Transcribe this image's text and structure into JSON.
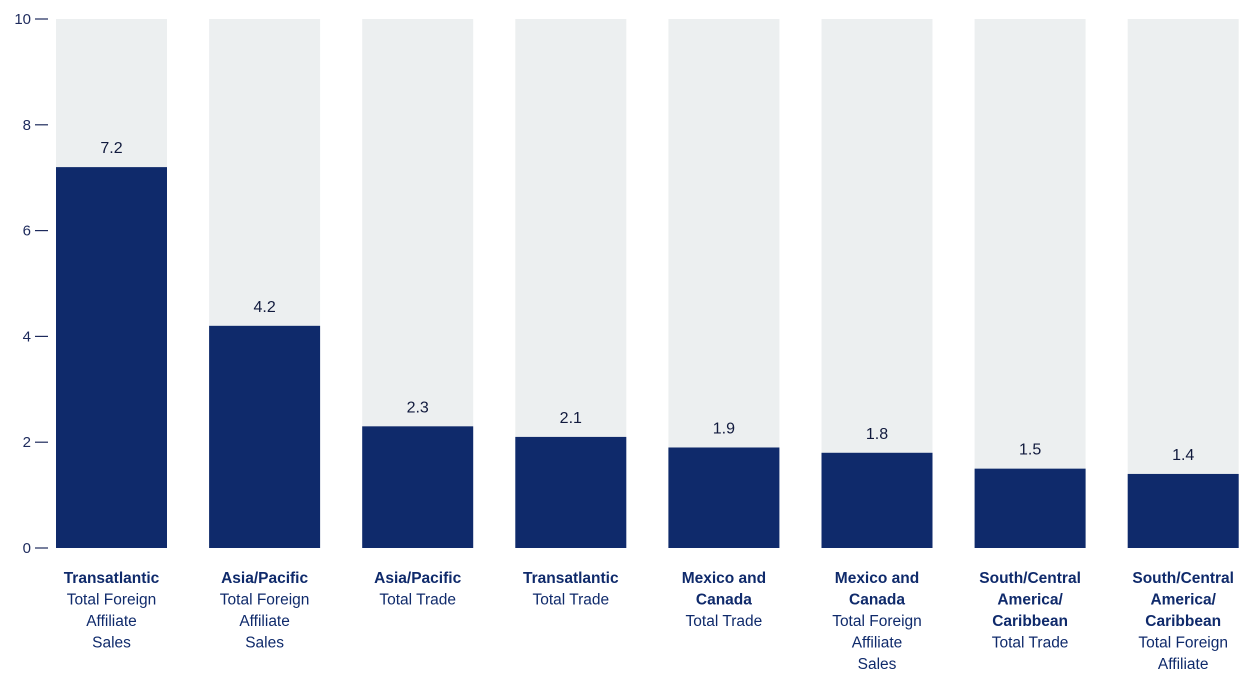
{
  "chart_data": {
    "type": "bar",
    "ylim": [
      0,
      10
    ],
    "yticks": [
      0,
      2,
      4,
      6,
      8,
      10
    ],
    "grid": false,
    "colors": {
      "bar": "#0f2a6b",
      "track": "#eceff0",
      "axis": "#1d2a5c"
    },
    "categories": [
      {
        "region": "Transatlantic",
        "measure": "Total Foreign Affiliate Sales"
      },
      {
        "region": "Asia/Pacific",
        "measure": "Total Foreign Affiliate Sales"
      },
      {
        "region": "Asia/Pacific",
        "measure": "Total Trade"
      },
      {
        "region": "Transatlantic",
        "measure": "Total Trade"
      },
      {
        "region": "Mexico and Canada",
        "measure": "Total Trade"
      },
      {
        "region": "Mexico and Canada",
        "measure": "Total Foreign Affiliate Sales"
      },
      {
        "region": "South/Central America/ Caribbean",
        "measure": "Total Trade"
      },
      {
        "region": "South/Central America/ Caribbean",
        "measure": "Total Foreign Affiliate Sales"
      }
    ],
    "values": [
      7.2,
      4.2,
      2.3,
      2.1,
      1.9,
      1.8,
      1.5,
      1.4
    ]
  }
}
